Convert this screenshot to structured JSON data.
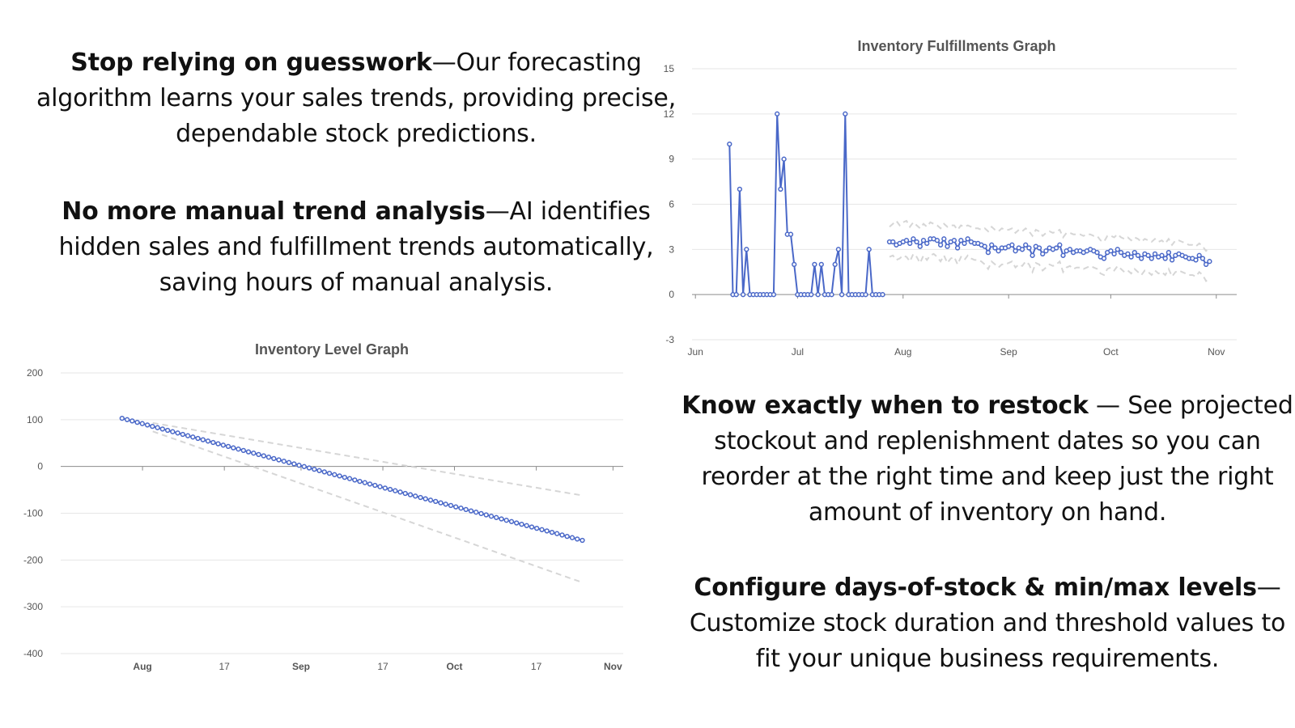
{
  "blurbs": [
    {
      "heading": "Stop relying on guesswork",
      "sep": "—",
      "text": "Our forecasting algorithm learns your sales trends, providing precise, dependable stock predictions."
    },
    {
      "heading": "No more manual trend analysis",
      "sep": "—",
      "text": "AI identifies hidden sales and fulfillment trends automatically, saving hours of manual analysis."
    },
    {
      "heading": "Know exactly when to restock",
      "sep": " — ",
      "text": "See projected stockout and replenishment dates so you can reorder at the right time and keep just the right amount of inventory on hand."
    },
    {
      "heading": "Configure days-of-stock & min/max levels",
      "sep": "—",
      "text": "Customize stock duration and threshold values to fit your unique business requirements."
    }
  ],
  "colors": {
    "series": "#4a68c8",
    "band": "#d6d6d6",
    "grid": "#e6e6e6",
    "axis": "#8c8c8c"
  },
  "chart_data": [
    {
      "type": "line",
      "title": "Inventory Fulfillments Graph",
      "xlabel": "",
      "ylabel": "",
      "x_ticks": [
        {
          "date": "2024-06-01",
          "label": "Jun"
        },
        {
          "date": "2024-07-01",
          "label": "Jul"
        },
        {
          "date": "2024-08-01",
          "label": "Aug"
        },
        {
          "date": "2024-09-01",
          "label": "Sep"
        },
        {
          "date": "2024-10-01",
          "label": "Oct"
        },
        {
          "date": "2024-11-01",
          "label": "Nov"
        }
      ],
      "xlim": [
        "2024-05-31",
        "2024-11-07"
      ],
      "yticks": [
        15,
        12,
        9,
        6,
        3,
        0,
        -3
      ],
      "ylim": [
        -3,
        15
      ],
      "grid": true,
      "series": [
        {
          "kind": "history",
          "start": "2024-06-11",
          "values": [
            10,
            0,
            0,
            7,
            0,
            3,
            0,
            0,
            0,
            0,
            0,
            0,
            0,
            0,
            12,
            7,
            9,
            4,
            4,
            2,
            0,
            0,
            0,
            0,
            0,
            2,
            0,
            2,
            0,
            0,
            0,
            2,
            3,
            0,
            12,
            0,
            0,
            0,
            0,
            0,
            0,
            3,
            0,
            0,
            0,
            0
          ]
        },
        {
          "kind": "forecast",
          "start": "2024-07-28",
          "values": [
            3.5,
            3.5,
            3.3,
            3.4,
            3.5,
            3.6,
            3.4,
            3.7,
            3.5,
            3.2,
            3.6,
            3.4,
            3.7,
            3.7,
            3.6,
            3.3,
            3.7,
            3.2,
            3.5,
            3.6,
            3.1,
            3.6,
            3.4,
            3.7,
            3.5,
            3.4,
            3.4,
            3.3,
            3.2,
            2.8,
            3.3,
            3.1,
            2.9,
            3.1,
            3.1,
            3.2,
            3.3,
            2.9,
            3.1,
            3.0,
            3.3,
            3.1,
            2.6,
            3.2,
            3.1,
            2.7,
            2.9,
            3.1,
            3.0,
            3.1,
            3.3,
            2.6,
            2.9,
            3.0,
            2.8,
            2.9,
            2.9,
            2.8,
            2.9,
            3.0,
            2.9,
            2.8,
            2.5,
            2.4,
            2.8,
            2.9,
            2.7,
            3.0,
            2.8,
            2.6,
            2.7,
            2.5,
            2.8,
            2.6,
            2.4,
            2.7,
            2.6,
            2.4,
            2.7,
            2.5,
            2.6,
            2.4,
            2.8,
            2.3,
            2.6,
            2.7,
            2.6,
            2.5,
            2.4,
            2.4,
            2.3,
            2.6,
            2.4,
            2.0,
            2.2
          ]
        },
        {
          "kind": "upper-bound",
          "start": "2024-07-28",
          "values": [
            4.5,
            4.7,
            4.9,
            4.6,
            4.8,
            4.9,
            4.5,
            4.8,
            4.6,
            4.4,
            4.7,
            4.5,
            4.8,
            4.7,
            4.6,
            4.4,
            4.7,
            4.5,
            4.6,
            4.6,
            4.3,
            4.6,
            4.5,
            4.6,
            4.5,
            4.4,
            4.4,
            4.3,
            4.4,
            4.2,
            4.5,
            4.3,
            4.2,
            4.4,
            4.3,
            4.3,
            4.4,
            4.1,
            4.3,
            4.2,
            4.4,
            4.2,
            3.9,
            4.3,
            4.2,
            3.9,
            4.1,
            4.2,
            4.1,
            4.2,
            4.3,
            3.8,
            4.1,
            4.1,
            4.0,
            4.0,
            4.0,
            3.9,
            4.0,
            4.0,
            3.9,
            3.9,
            3.6,
            3.5,
            3.9,
            3.9,
            3.8,
            4.0,
            3.8,
            3.7,
            3.8,
            3.6,
            3.8,
            3.7,
            3.5,
            3.7,
            3.6,
            3.5,
            3.7,
            3.5,
            3.6,
            3.4,
            3.7,
            3.3,
            3.6,
            3.6,
            3.5,
            3.4,
            3.3,
            3.3,
            3.2,
            3.4,
            3.2,
            2.9,
            3.1
          ]
        },
        {
          "kind": "lower-bound",
          "start": "2024-07-28",
          "values": [
            2.5,
            2.6,
            2.3,
            2.4,
            2.6,
            2.5,
            2.2,
            2.7,
            2.5,
            2.1,
            2.6,
            2.3,
            2.6,
            2.7,
            2.5,
            2.2,
            2.6,
            2.1,
            2.4,
            2.5,
            2.0,
            2.5,
            2.3,
            2.6,
            2.4,
            2.3,
            2.3,
            2.2,
            2.0,
            1.7,
            2.2,
            2.0,
            1.8,
            2.0,
            2.0,
            2.1,
            2.2,
            1.8,
            2.0,
            1.9,
            2.2,
            2.0,
            1.5,
            2.1,
            2.0,
            1.6,
            1.8,
            2.0,
            1.9,
            2.0,
            2.2,
            1.5,
            1.8,
            1.9,
            1.7,
            1.8,
            1.8,
            1.7,
            1.8,
            1.9,
            1.8,
            1.7,
            1.4,
            1.3,
            1.7,
            1.8,
            1.6,
            1.9,
            1.7,
            1.5,
            1.6,
            1.4,
            1.7,
            1.5,
            1.3,
            1.6,
            1.5,
            1.3,
            1.6,
            1.4,
            1.5,
            1.3,
            1.7,
            1.2,
            1.5,
            1.6,
            1.5,
            1.4,
            1.3,
            1.3,
            1.2,
            1.5,
            1.3,
            0.9,
            1.1
          ]
        }
      ]
    },
    {
      "type": "line",
      "title": "Inventory Level Graph",
      "xlabel": "",
      "ylabel": "",
      "x_ticks": [
        {
          "date": "2024-08-01",
          "label": "Aug"
        },
        {
          "date": "2024-08-17",
          "label": "17"
        },
        {
          "date": "2024-09-01",
          "label": "Sep"
        },
        {
          "date": "2024-09-17",
          "label": "17"
        },
        {
          "date": "2024-10-01",
          "label": "Oct"
        },
        {
          "date": "2024-10-17",
          "label": "17"
        },
        {
          "date": "2024-11-01",
          "label": "Nov"
        }
      ],
      "xlim": [
        "2024-07-16",
        "2024-11-03"
      ],
      "yticks": [
        200,
        100,
        0,
        -100,
        -200,
        -300,
        -400
      ],
      "ylim": [
        -400,
        200
      ],
      "grid": true,
      "series": [
        {
          "kind": "forecast",
          "start": "2024-07-28",
          "end": "2024-10-26",
          "from": 103,
          "to": -158,
          "points": 92
        },
        {
          "kind": "upper-bound",
          "start": "2024-08-03",
          "end": "2024-10-26",
          "from": 93,
          "to": -62,
          "points": 2
        },
        {
          "kind": "lower-bound",
          "start": "2024-08-03",
          "end": "2024-10-26",
          "from": 75,
          "to": -248,
          "points": 2
        }
      ]
    }
  ]
}
